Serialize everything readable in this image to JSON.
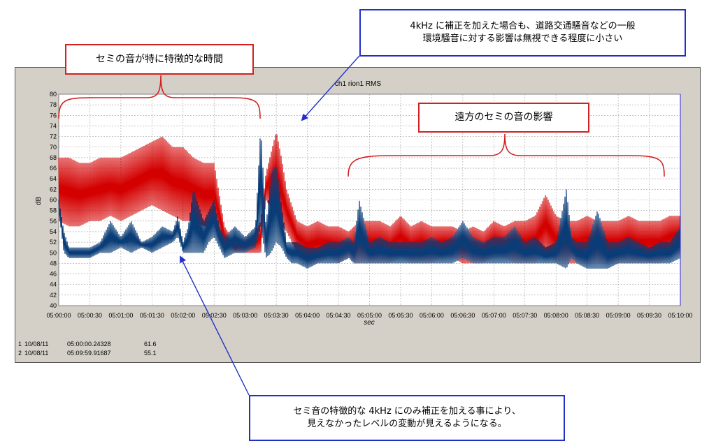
{
  "chart_data": {
    "type": "line",
    "title": "ch1 rion1 RMS",
    "xlabel": "sec",
    "ylabel": "dB",
    "ylim": [
      40,
      80
    ],
    "yticks": [
      "40",
      "42",
      "44",
      "46",
      "48",
      "50",
      "52",
      "54",
      "56",
      "58",
      "60",
      "62",
      "64",
      "66",
      "68",
      "70",
      "72",
      "74",
      "76",
      "78",
      "80"
    ],
    "xticks": [
      "05:00:00",
      "05:00:30",
      "05:01:00",
      "05:01:30",
      "05:02:00",
      "05:02:30",
      "05:03:00",
      "05:03:30",
      "05:04:00",
      "05:04:30",
      "05:05:00",
      "05:05:30",
      "05:06:00",
      "05:06:30",
      "05:07:00",
      "05:07:30",
      "05:08:00",
      "05:08:30",
      "05:09:00",
      "05:09:30",
      "05:10:00"
    ],
    "grid": true,
    "colors": {
      "series_red": "#d40000",
      "series_blue": "#0a3d78",
      "cursor": "#2a2ad0"
    },
    "series": [
      {
        "color": "#d40000",
        "x_sec": [
          0,
          10,
          20,
          30,
          40,
          50,
          60,
          70,
          80,
          90,
          100,
          110,
          120,
          130,
          140,
          150,
          160,
          170,
          180,
          190,
          195,
          200,
          210,
          215,
          220,
          230,
          240,
          250,
          260,
          270,
          280,
          285,
          290,
          300,
          310,
          320,
          330,
          340,
          350,
          360,
          370,
          380,
          390,
          400,
          410,
          420,
          430,
          440,
          450,
          460,
          470,
          480,
          490,
          500,
          510,
          520,
          530,
          540,
          550,
          560,
          570,
          580,
          590,
          600
        ],
        "min": [
          56,
          55,
          55,
          56,
          56,
          57,
          56,
          57,
          58,
          59,
          58,
          57,
          56,
          56,
          55,
          55,
          51,
          50,
          50,
          50,
          50,
          60,
          57,
          55,
          54,
          50,
          48,
          48,
          49,
          48,
          49,
          48,
          48,
          48,
          48,
          48,
          49,
          48,
          48,
          48,
          49,
          49,
          48,
          48,
          48,
          49,
          49,
          48,
          48,
          48,
          50,
          48,
          48,
          48,
          48,
          48,
          48,
          48,
          48,
          48,
          48,
          48,
          49,
          50
        ],
        "max": [
          68,
          68,
          67,
          67,
          68,
          68,
          68,
          69,
          70,
          71,
          72,
          70,
          70,
          68,
          67,
          67,
          55,
          52,
          53,
          54,
          56,
          65,
          73,
          68,
          62,
          56,
          55,
          56,
          55,
          55,
          54,
          55,
          56,
          56,
          56,
          55,
          57,
          55,
          56,
          55,
          55,
          55,
          54,
          55,
          54,
          56,
          55,
          56,
          56,
          57,
          61,
          57,
          56,
          56,
          57,
          56,
          56,
          56,
          57,
          56,
          56,
          56,
          57,
          57
        ]
      },
      {
        "color": "#0a3d78",
        "x_sec": [
          0,
          5,
          10,
          20,
          30,
          40,
          50,
          60,
          70,
          80,
          90,
          100,
          110,
          115,
          120,
          125,
          130,
          140,
          145,
          150,
          155,
          160,
          170,
          180,
          190,
          195,
          200,
          205,
          210,
          215,
          220,
          225,
          230,
          240,
          250,
          260,
          270,
          280,
          285,
          290,
          300,
          310,
          320,
          330,
          340,
          350,
          360,
          370,
          380,
          390,
          400,
          410,
          420,
          430,
          440,
          450,
          460,
          470,
          480,
          490,
          495,
          500,
          510,
          520,
          530,
          540,
          550,
          560,
          570,
          580,
          590,
          600
        ],
        "min": [
          58,
          50,
          49,
          49,
          49,
          50,
          50,
          51,
          50,
          51,
          50,
          51,
          52,
          53,
          50,
          50,
          50,
          50,
          52,
          53,
          51,
          49,
          50,
          50,
          51,
          55,
          49,
          50,
          52,
          51,
          49,
          48,
          48,
          47,
          48,
          48,
          48,
          49,
          48,
          48,
          48,
          48,
          48,
          48,
          48,
          48,
          48,
          48,
          48,
          49,
          48,
          48,
          48,
          48,
          48,
          48,
          48,
          48,
          48,
          47,
          49,
          48,
          47,
          47,
          47,
          48,
          48,
          48,
          48,
          48,
          48,
          49
        ],
        "max": [
          60,
          54,
          51,
          51,
          51,
          52,
          56,
          53,
          56,
          52,
          53,
          55,
          54,
          57,
          52,
          55,
          62,
          56,
          58,
          60,
          55,
          53,
          55,
          53,
          55,
          74,
          55,
          65,
          67,
          59,
          52,
          52,
          52,
          51,
          51,
          52,
          52,
          53,
          52,
          60,
          52,
          53,
          52,
          52,
          52,
          52,
          53,
          52,
          53,
          56,
          53,
          52,
          53,
          53,
          55,
          52,
          53,
          51,
          52,
          62,
          53,
          52,
          52,
          58,
          52,
          52,
          53,
          52,
          51,
          52,
          52,
          55
        ]
      }
    ]
  },
  "info_rows": [
    {
      "num": "1",
      "date": "10/08/11",
      "time": "05:00:00.24328",
      "value": "61.6"
    },
    {
      "num": "2",
      "date": "10/08/11",
      "time": "05:09:59.91687",
      "value": "55.1"
    }
  ],
  "callouts": {
    "cicada_time": "セミの音が特に特徴的な時間",
    "road_noise": [
      "4kHz に補正を加えた場合も、道路交通騒音などの一般",
      "環境騒音に対する影響は無視できる程度に小さい"
    ],
    "distant_cicada": "遠方のセミの音の影響",
    "correction_note": [
      "セミ音の特徴的な 4kHz にのみ補正を加える事により、",
      "見えなかったレベルの変動が見えるようになる。"
    ]
  }
}
